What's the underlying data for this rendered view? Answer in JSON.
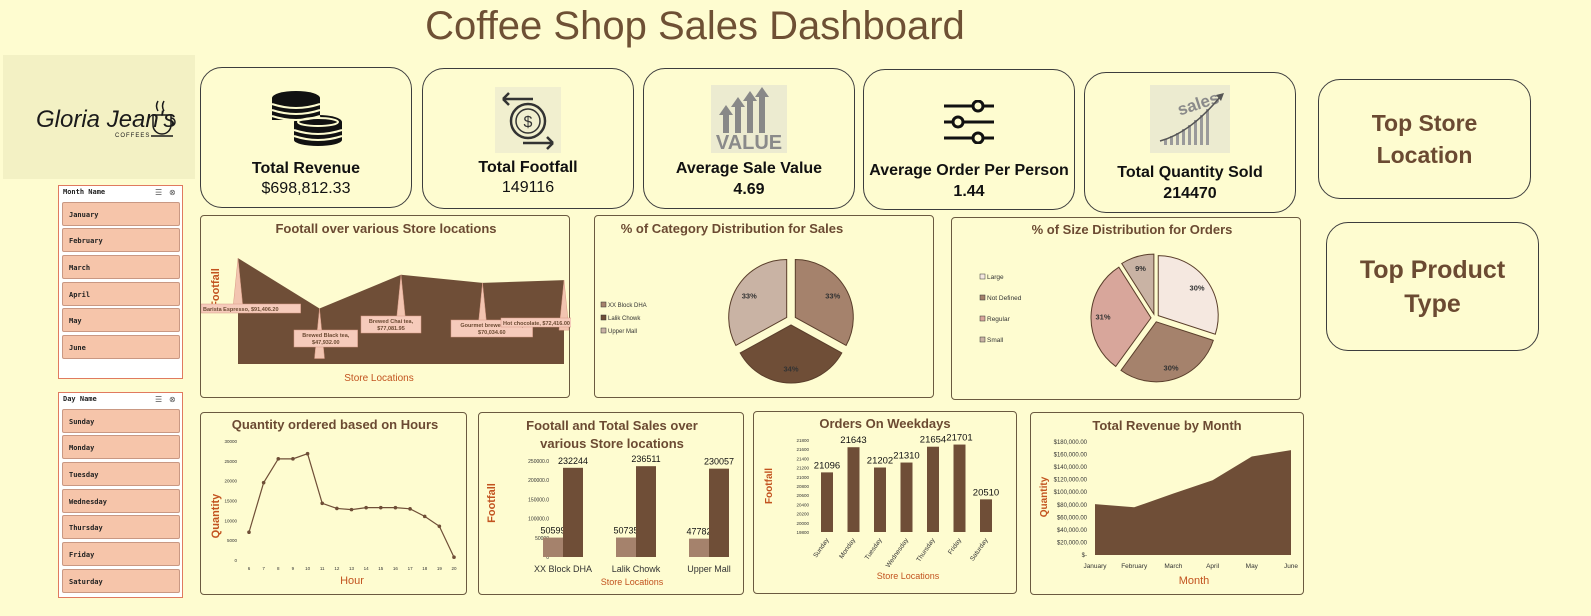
{
  "title": "Coffee Shop Sales Dashboard",
  "logo": {
    "brand": "Gloria Jean's",
    "sub": "COFFEES"
  },
  "kpis": [
    {
      "label": "Total Revenue",
      "value": "$698,812.33",
      "icon": "coins-icon"
    },
    {
      "label": "Total Footfall",
      "value": "149116",
      "icon": "dollar-exchange-icon"
    },
    {
      "label": "Average Sale Value",
      "value": "4.69",
      "icon": "value-arrows-icon"
    },
    {
      "label": "Average Order Per Person",
      "value": "1.44",
      "icon": "sliders-icon"
    },
    {
      "label": "Total Quantity Sold",
      "value": "214470",
      "icon": "sales-growth-icon"
    }
  ],
  "top_store_location": "Top Store Location",
  "top_product_type": "Top Product Type",
  "month_slicer": {
    "header": "Month Name",
    "items": [
      "January",
      "February",
      "March",
      "April",
      "May",
      "June"
    ]
  },
  "day_slicer": {
    "header": "Day Name",
    "items": [
      "Sunday",
      "Monday",
      "Tuesday",
      "Wednesday",
      "Thursday",
      "Friday",
      "Saturday"
    ]
  },
  "colors": {
    "brown": "#6f4e37",
    "mid": "#a5826c",
    "light": "#c9b3a4",
    "pink": "#d8a69b",
    "cream": "#f5e8e0",
    "axis": "#c2531f"
  },
  "chart_data": [
    {
      "id": "footfall-stores",
      "type": "area",
      "title": "Footall over various Store locations",
      "xlabel": "Store Locations",
      "ylabel": "Footfall",
      "labels": [
        "Barista Espresso, $91,406.20",
        "Brewed Black tea, $47,932.00",
        "Brewed Chai tea, $77,081.95",
        "Gourmet brewed coffee, $70,034.60",
        "Hot chocolate, $72,416.00"
      ],
      "values": [
        91406.2,
        47932.0,
        77081.95,
        70034.6,
        72416.0
      ]
    },
    {
      "id": "category-distribution",
      "type": "pie",
      "title": "% of Category Distribution for Sales",
      "legend": [
        "XX Block DHA",
        "Lalik Chowk",
        "Upper Mall"
      ],
      "values": [
        33,
        34,
        33
      ],
      "labels": [
        "33%",
        "34%",
        "33%"
      ]
    },
    {
      "id": "size-distribution",
      "type": "pie",
      "title": "% of Size Distribution for Orders",
      "legend": [
        "Large",
        "Not Defined",
        "Regular",
        "Small"
      ],
      "values": [
        30,
        30,
        31,
        9
      ],
      "labels": [
        "30%",
        "30%",
        "31%",
        "9%"
      ]
    },
    {
      "id": "quantity-hours",
      "type": "line",
      "title": "Quantity ordered based on Hours",
      "xlabel": "Hour",
      "ylabel": "Quantity",
      "x": [
        "6",
        "7",
        "8",
        "9",
        "10",
        "11",
        "12",
        "13",
        "14",
        "15",
        "16",
        "17",
        "18",
        "19",
        "20"
      ],
      "values": [
        7000,
        19500,
        25500,
        25500,
        26800,
        14300,
        13000,
        12700,
        13200,
        13200,
        13200,
        12900,
        11000,
        8500,
        700
      ],
      "yticks": [
        "0",
        "5000",
        "10000",
        "15000",
        "20000",
        "25000",
        "30000"
      ],
      "ylim": [
        0,
        30000
      ]
    },
    {
      "id": "footfall-sales",
      "type": "bar",
      "title": "Footall and Total Sales over various Store locations",
      "xlabel": "Store Locations",
      "ylabel": "Footfall",
      "categories": [
        "XX Block DHA",
        "Lalik Chowk",
        "Upper Mall"
      ],
      "series": [
        {
          "values": [
            50599,
            50735,
            47782
          ],
          "labels": [
            "50599",
            "50735",
            "47782"
          ]
        },
        {
          "values": [
            232244,
            236511,
            230057
          ],
          "labels": [
            "232244",
            "236511",
            "230057"
          ]
        }
      ],
      "yticks": [
        "0",
        "50000",
        "100000.0",
        "150000.0",
        "200000.0",
        "250000.0"
      ],
      "ylim": [
        0,
        250000
      ]
    },
    {
      "id": "orders-weekdays",
      "type": "bar",
      "title": "Orders On Weekdays",
      "xlabel": "Store Locations",
      "ylabel": "Footfall",
      "categories": [
        "Sunday",
        "Monday",
        "Tuesday",
        "Wednesday",
        "Thursday",
        "Friday",
        "Saturday"
      ],
      "values": [
        21096,
        21643,
        21202,
        21310,
        21654,
        21701,
        20510
      ],
      "labels": [
        "21096",
        "21643",
        "21202",
        "21310",
        "21654",
        "21701",
        "20510"
      ],
      "yticks": [
        "19800",
        "20000",
        "20200",
        "20400",
        "20600",
        "20800",
        "21000",
        "21200",
        "21400",
        "21600",
        "21800"
      ],
      "ylim": [
        19800,
        21800
      ]
    },
    {
      "id": "revenue-month",
      "type": "area",
      "title": "Total Revenue by Month",
      "xlabel": "Month",
      "ylabel": "Quantity",
      "categories": [
        "January",
        "February",
        "March",
        "April",
        "May",
        "June"
      ],
      "values": [
        81000,
        76000,
        98000,
        119000,
        157000,
        167000
      ],
      "yticks": [
        "$-",
        "$20,000.00",
        "$40,000.00",
        "$60,000.00",
        "$80,000.00",
        "$100,000.00",
        "$120,000.00",
        "$140,000.00",
        "$160,000.00",
        "$180,000.00"
      ],
      "ylim": [
        0,
        180000
      ]
    }
  ]
}
